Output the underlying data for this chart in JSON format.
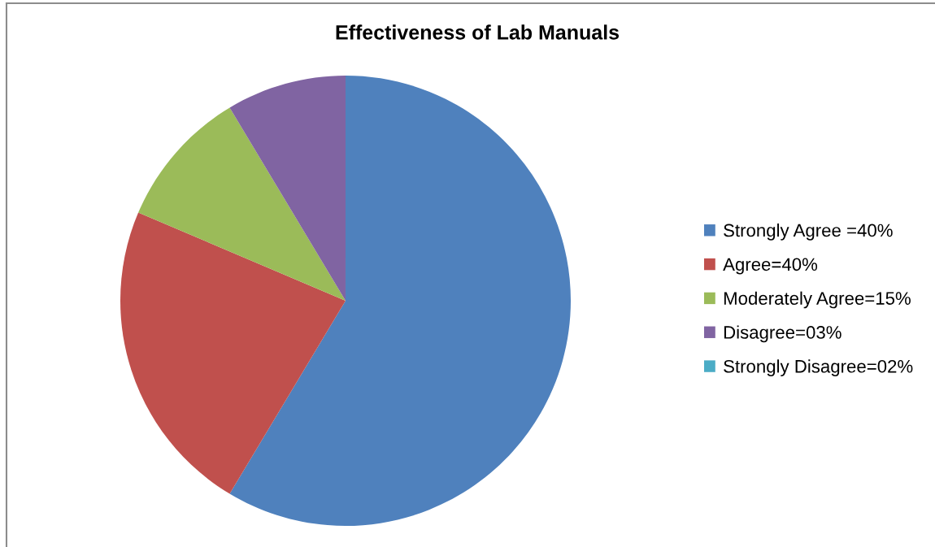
{
  "chart_data": {
    "type": "pie",
    "title": "Effectiveness of Lab Manuals",
    "categories": [
      "Strongly Agree =40%",
      "Agree=40%",
      "Moderately Agree=15%",
      "Disagree=03%",
      "Strongly Disagree=02%"
    ],
    "values": [
      58.6,
      22.8,
      10.0,
      8.6,
      0
    ],
    "colors": [
      "#4f81bd",
      "#c0504d",
      "#9bbb59",
      "#8064a2",
      "#4bacc6"
    ],
    "legend": "right"
  }
}
